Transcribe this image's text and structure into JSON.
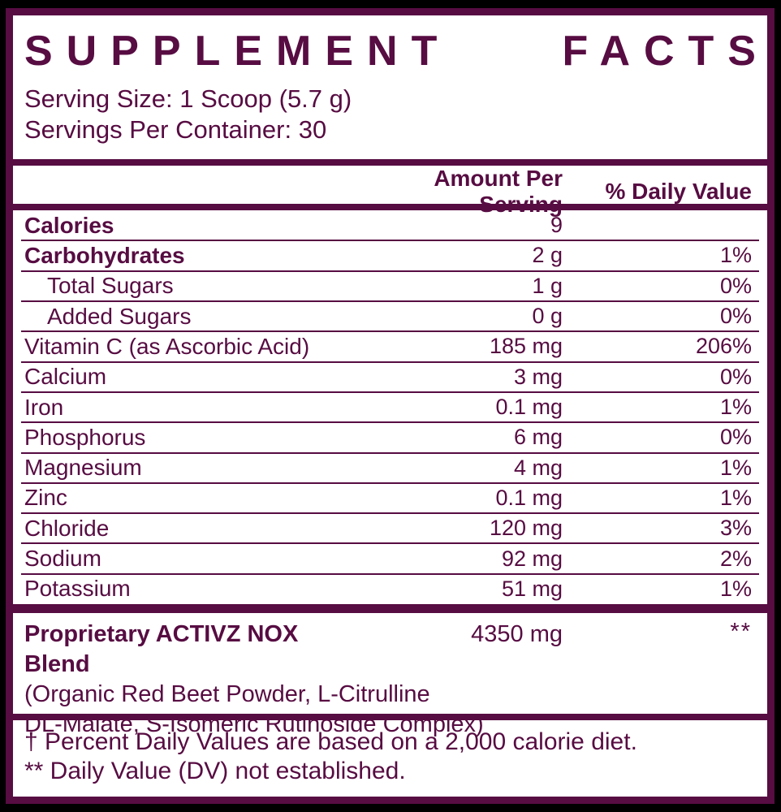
{
  "title": {
    "word1": "SUPPLEMENT",
    "word2": "FACTS",
    "full": "SUPPLEMENT FACTS"
  },
  "serving": {
    "size_line": "Serving Size: 1 Scoop (5.7 g)",
    "per_container_line": "Servings Per Container: 30"
  },
  "table": {
    "headers": {
      "amount": "Amount Per Serving",
      "daily_value": "% Daily Value"
    },
    "rows": [
      {
        "label": "Calories",
        "amount": "9",
        "dv": ""
      },
      {
        "label": "Carbohydrates",
        "amount": "2 g",
        "dv": "1%"
      },
      {
        "label": "Total Sugars",
        "amount": "1 g",
        "dv": "0%"
      },
      {
        "label": "Added Sugars",
        "amount": "0 g",
        "dv": "0%"
      },
      {
        "label": "Vitamin C (as Ascorbic Acid)",
        "amount": "185 mg",
        "dv": "206%"
      },
      {
        "label": "Calcium",
        "amount": "3 mg",
        "dv": "0%"
      },
      {
        "label": "Iron",
        "amount": "0.1 mg",
        "dv": "1%"
      },
      {
        "label": "Phosphorus",
        "amount": "6 mg",
        "dv": "0%"
      },
      {
        "label": "Magnesium",
        "amount": "4 mg",
        "dv": "1%"
      },
      {
        "label": "Zinc",
        "amount": "0.1 mg",
        "dv": "1%"
      },
      {
        "label": "Chloride",
        "amount": "120 mg",
        "dv": "3%"
      },
      {
        "label": "Sodium",
        "amount": "92 mg",
        "dv": "2%"
      },
      {
        "label": "Potassium",
        "amount": "51 mg",
        "dv": "1%"
      }
    ]
  },
  "blend": {
    "name": "Proprietary ACTIVZ NOX Blend",
    "amount": "4350 mg",
    "dv": "**",
    "ingredients_line1": "(Organic Red Beet Powder, L-Citrulline",
    "ingredients_line2": "DL-Malate, S-Isomeric Rutinoside Complex)"
  },
  "footnotes": {
    "line1": "† Percent Daily Values are based on a 2,000 calorie diet.",
    "line2": "** Daily Value (DV) not established."
  },
  "colors": {
    "maroon": "#570c42",
    "panel_background": "#ffffff",
    "outer_background": "#000000"
  }
}
